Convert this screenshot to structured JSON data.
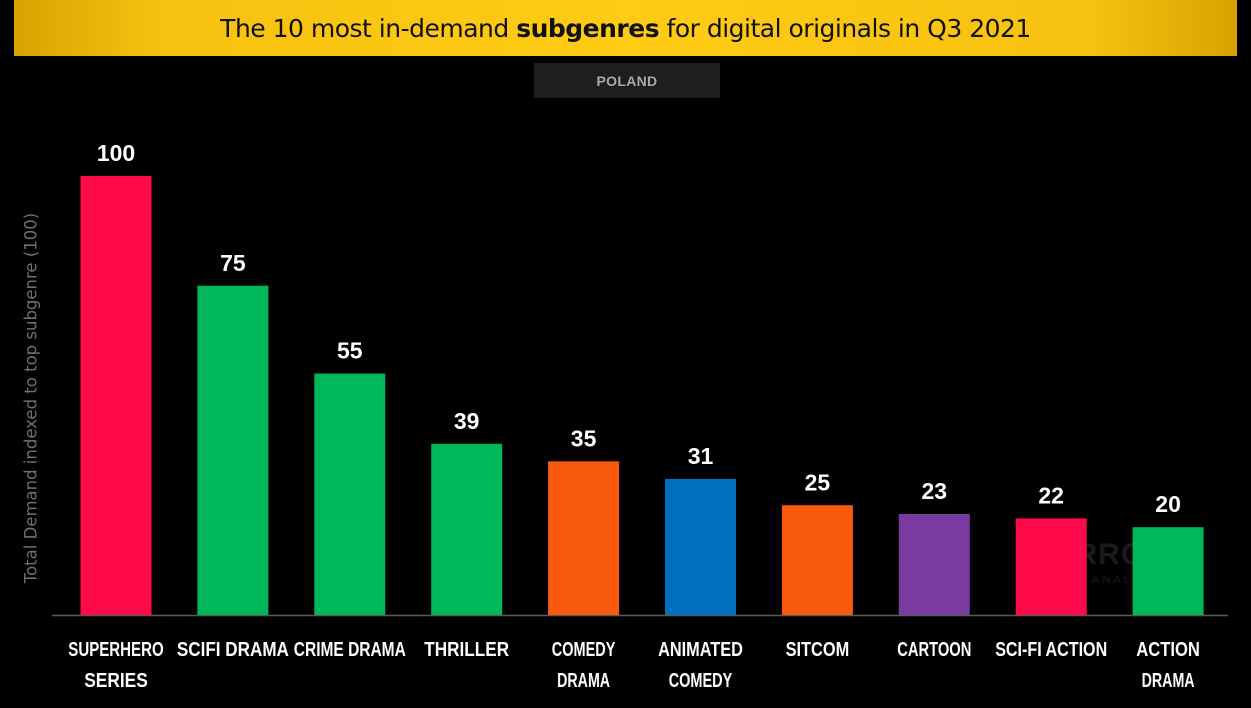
{
  "header": {
    "title_prefix": "The 10 most in-demand ",
    "title_bold": "subgenres",
    "title_suffix": " for digital originals in Q3 2021",
    "region": "POLAND"
  },
  "watermark": {
    "brand": "PARROT",
    "sub": "ANALYTICS"
  },
  "colors": {
    "background": "#000000",
    "title_bar": "#ffcb14",
    "pink": "#ff0a4b",
    "green": "#00b859",
    "orange": "#f95a0d",
    "blue": "#0071bf",
    "purple": "#7a3ba0"
  },
  "chart_data": {
    "type": "bar",
    "title": "The 10 most in-demand subgenres for digital originals in Q3 2021",
    "subtitle": "POLAND",
    "xlabel": "",
    "ylabel": "Total Demand indexed to top subgenre (100)",
    "ylim": [
      0,
      100
    ],
    "grid": false,
    "categories": [
      [
        "SUPERHERO",
        "SERIES"
      ],
      [
        "SCIFI DRAMA"
      ],
      [
        "CRIME DRAMA"
      ],
      [
        "THRILLER"
      ],
      [
        "COMEDY",
        "DRAMA"
      ],
      [
        "ANIMATED",
        "COMEDY"
      ],
      [
        "SITCOM"
      ],
      [
        "CARTOON"
      ],
      [
        "SCI-FI ACTION"
      ],
      [
        "ACTION",
        "DRAMA"
      ]
    ],
    "values": [
      100,
      75,
      55,
      39,
      35,
      31,
      25,
      23,
      22,
      20
    ],
    "bar_colors": [
      "#ff0a4b",
      "#00b859",
      "#00b859",
      "#00b859",
      "#f95a0d",
      "#0071bf",
      "#f95a0d",
      "#7a3ba0",
      "#ff0a4b",
      "#00b859"
    ]
  }
}
